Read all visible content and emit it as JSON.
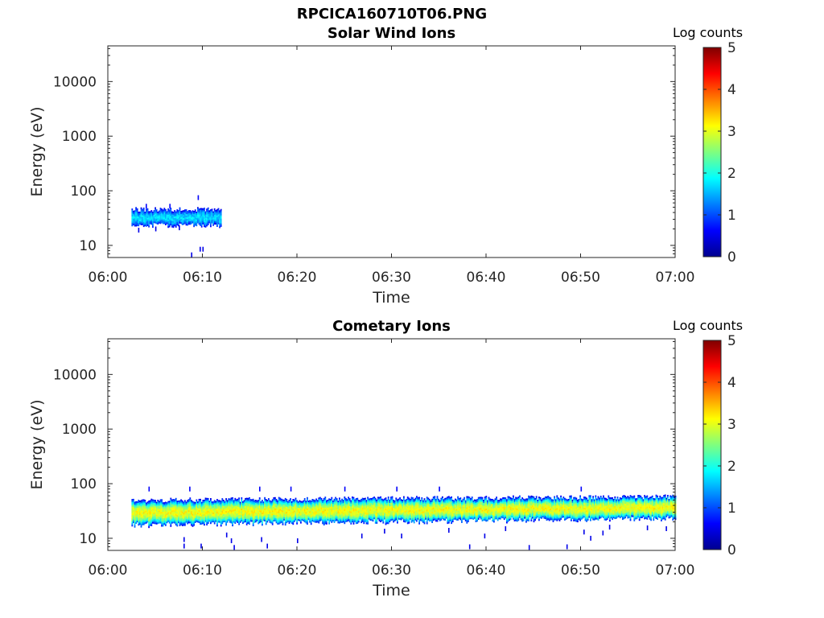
{
  "figure_title": "RPCICA160710T06.PNG",
  "colors": {
    "axis": "#262626",
    "colormap": [
      "#00008f",
      "#0000ff",
      "#007fff",
      "#00ffff",
      "#7fff7f",
      "#ffff00",
      "#ff7f00",
      "#ff0000",
      "#7f0000"
    ]
  },
  "chart_data": [
    {
      "type": "heatmap",
      "title": "Solar Wind Ions",
      "xlabel": "Time",
      "ylabel": "Energy (eV)",
      "x_range": [
        "06:00",
        "07:00"
      ],
      "x_ticks": [
        "06:00",
        "06:10",
        "06:20",
        "06:30",
        "06:40",
        "06:50",
        "07:00"
      ],
      "y_scale": "log",
      "y_range": [
        6,
        45000
      ],
      "y_ticks": [
        10,
        100,
        1000,
        10000
      ],
      "y_tick_labels": [
        "10",
        "100",
        "1000",
        "10000"
      ],
      "colorbar": {
        "label": "Log counts",
        "range": [
          0,
          5
        ],
        "ticks": [
          "0",
          "1",
          "2",
          "3",
          "4",
          "5"
        ]
      },
      "bands": [
        {
          "t_start_min": 2.5,
          "t_end_min": 12.0,
          "e_low": 24,
          "e_high": 46,
          "peak_log_counts": 1.7
        }
      ],
      "sparse_points": [
        {
          "t_min": 9.5,
          "e": 75,
          "log_counts": 0.6
        },
        {
          "t_min": 9.7,
          "e": 8.5,
          "log_counts": 0.5
        },
        {
          "t_min": 10.0,
          "e": 8.5,
          "log_counts": 0.5
        },
        {
          "t_min": 8.8,
          "e": 6.7,
          "log_counts": 0.5
        },
        {
          "t_min": 4.0,
          "e": 52,
          "log_counts": 0.6
        },
        {
          "t_min": 6.5,
          "e": 52,
          "log_counts": 0.6
        },
        {
          "t_min": 3.2,
          "e": 19,
          "log_counts": 0.5
        },
        {
          "t_min": 5.0,
          "e": 20,
          "log_counts": 0.5
        },
        {
          "t_min": 7.5,
          "e": 21,
          "log_counts": 0.5
        }
      ]
    },
    {
      "type": "heatmap",
      "title": "Cometary Ions",
      "xlabel": "Time",
      "ylabel": "Energy (eV)",
      "x_range": [
        "06:00",
        "07:00"
      ],
      "x_ticks": [
        "06:00",
        "06:10",
        "06:20",
        "06:30",
        "06:40",
        "06:50",
        "07:00"
      ],
      "y_scale": "log",
      "y_range": [
        6,
        45000
      ],
      "y_ticks": [
        10,
        100,
        1000,
        10000
      ],
      "y_tick_labels": [
        "10",
        "100",
        "1000",
        "10000"
      ],
      "colorbar": {
        "label": "Log counts",
        "range": [
          0,
          5
        ],
        "ticks": [
          "0",
          "1",
          "2",
          "3",
          "4",
          "5"
        ]
      },
      "bands": [
        {
          "t_start_min": 2.5,
          "t_end_min": 60.0,
          "e_low_start": 18,
          "e_high_start": 50,
          "e_low_end": 24,
          "e_high_end": 58,
          "peak_log_counts": 3.1
        }
      ],
      "sparse_points": [
        {
          "t_min": 4.3,
          "e": 80,
          "log_counts": 0.6
        },
        {
          "t_min": 8.6,
          "e": 80,
          "log_counts": 0.6
        },
        {
          "t_min": 16.0,
          "e": 80,
          "log_counts": 0.6
        },
        {
          "t_min": 19.3,
          "e": 80,
          "log_counts": 0.6
        },
        {
          "t_min": 25.0,
          "e": 80,
          "log_counts": 0.6
        },
        {
          "t_min": 30.5,
          "e": 80,
          "log_counts": 0.6
        },
        {
          "t_min": 35.0,
          "e": 80,
          "log_counts": 0.6
        },
        {
          "t_min": 50.0,
          "e": 80,
          "log_counts": 0.6
        },
        {
          "t_min": 8.0,
          "e": 9.5,
          "log_counts": 0.5
        },
        {
          "t_min": 8.0,
          "e": 7.2,
          "log_counts": 0.5
        },
        {
          "t_min": 9.8,
          "e": 7.2,
          "log_counts": 0.5
        },
        {
          "t_min": 12.5,
          "e": 11.5,
          "log_counts": 0.5
        },
        {
          "t_min": 13.0,
          "e": 9.0,
          "log_counts": 0.5
        },
        {
          "t_min": 13.3,
          "e": 6.8,
          "log_counts": 0.5
        },
        {
          "t_min": 16.2,
          "e": 9.5,
          "log_counts": 0.5
        },
        {
          "t_min": 16.8,
          "e": 7.2,
          "log_counts": 0.5
        },
        {
          "t_min": 20.0,
          "e": 9.0,
          "log_counts": 0.5
        },
        {
          "t_min": 26.8,
          "e": 11.0,
          "log_counts": 0.5
        },
        {
          "t_min": 29.2,
          "e": 13.5,
          "log_counts": 0.5
        },
        {
          "t_min": 31.0,
          "e": 11.0,
          "log_counts": 0.5
        },
        {
          "t_min": 38.2,
          "e": 7.0,
          "log_counts": 0.5
        },
        {
          "t_min": 39.8,
          "e": 11.0,
          "log_counts": 0.5
        },
        {
          "t_min": 44.5,
          "e": 6.8,
          "log_counts": 0.5
        },
        {
          "t_min": 48.5,
          "e": 7.0,
          "log_counts": 0.5
        },
        {
          "t_min": 50.3,
          "e": 13.0,
          "log_counts": 0.5
        },
        {
          "t_min": 51.0,
          "e": 10.0,
          "log_counts": 0.5
        },
        {
          "t_min": 52.3,
          "e": 12.5,
          "log_counts": 0.5
        },
        {
          "t_min": 53.0,
          "e": 16.0,
          "log_counts": 0.5
        },
        {
          "t_min": 57.0,
          "e": 15.5,
          "log_counts": 0.5
        },
        {
          "t_min": 59.0,
          "e": 15.0,
          "log_counts": 0.5
        },
        {
          "t_min": 36.0,
          "e": 14.0,
          "log_counts": 0.5
        },
        {
          "t_min": 42.0,
          "e": 15.0,
          "log_counts": 0.5
        }
      ]
    }
  ]
}
